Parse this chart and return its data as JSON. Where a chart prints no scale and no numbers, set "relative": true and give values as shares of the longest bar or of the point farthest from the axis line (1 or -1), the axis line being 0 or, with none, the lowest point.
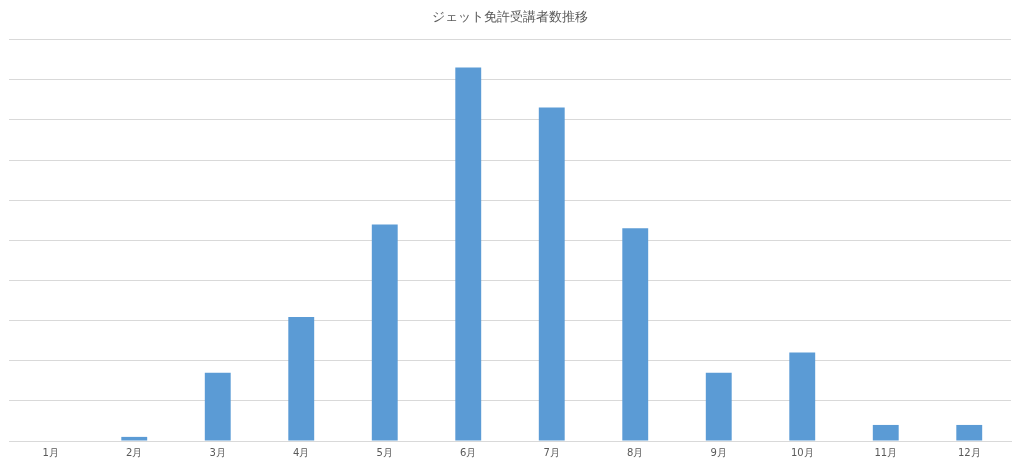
{
  "chart_data": {
    "type": "bar",
    "title": "ジェット免許受講者数推移",
    "categories": [
      "1月",
      "2月",
      "3月",
      "4月",
      "5月",
      "6月",
      "7月",
      "8月",
      "9月",
      "10月",
      "11月",
      "12月"
    ],
    "values": [
      0,
      0.011,
      0.183,
      0.332,
      0.58,
      1,
      0.893,
      0.57,
      0.183,
      0.237,
      0.043,
      0.043
    ],
    "color": "#5b9bd5",
    "relative": true,
    "grid": "y"
  }
}
